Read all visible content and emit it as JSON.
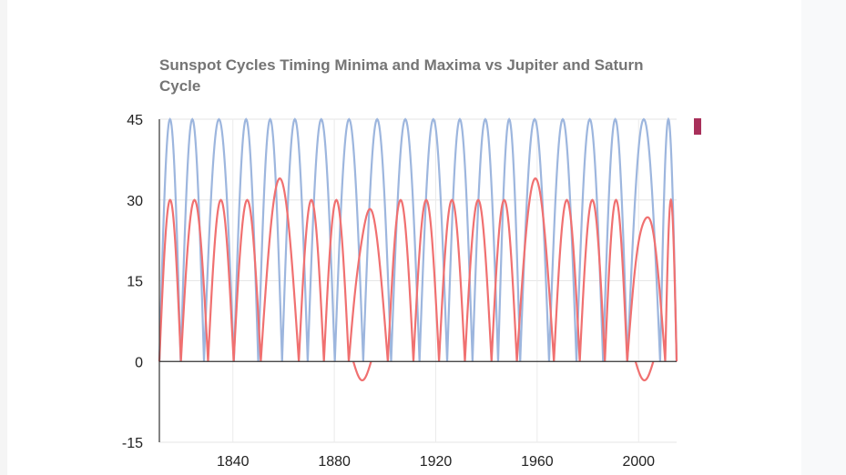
{
  "chart_data": {
    "type": "line",
    "title": "Sunspot Cycles Timing Minima and Maxima vs Jupiter and Saturn Cycle",
    "xlabel": "",
    "ylabel": "",
    "xlim": [
      1811,
      2015
    ],
    "ylim": [
      -15,
      45
    ],
    "x_ticks": [
      1840,
      1880,
      1920,
      1960,
      2000
    ],
    "y_ticks": [
      -15,
      0,
      15,
      30,
      45
    ],
    "grid": true,
    "legend": "right",
    "series": [
      {
        "color": "#9db6de",
        "style": "periodic",
        "amplitude": 45,
        "baseline": 0,
        "minima": [
          1811,
          1819.4,
          1828.6,
          1840.4,
          1850.0,
          1859.4,
          1869.5,
          1880.2,
          1891.4,
          1902.4,
          1913.6,
          1924.5,
          1934.5,
          1944.6,
          1953.3,
          1964.7,
          1975.5,
          1986.0,
          1995.6,
          2008.5,
          2015
        ]
      },
      {
        "color": "#f07070",
        "style": "periodic",
        "baseline": 0,
        "cycles": [
          {
            "start": 1811,
            "end": 1819.5,
            "amplitude": 30
          },
          {
            "start": 1819.5,
            "end": 1830.2,
            "amplitude": 30
          },
          {
            "start": 1830.2,
            "end": 1840.3,
            "amplitude": 30
          },
          {
            "start": 1840.3,
            "end": 1851.0,
            "amplitude": 30
          },
          {
            "start": 1851.0,
            "end": 1866.0,
            "amplitude": 34
          },
          {
            "start": 1866.0,
            "end": 1875.9,
            "amplitude": 30
          },
          {
            "start": 1875.9,
            "end": 1885.7,
            "amplitude": 30
          },
          {
            "start": 1885.7,
            "end": 1901.1,
            "amplitude": 30
          },
          {
            "start": 1901.1,
            "end": 1911.2,
            "amplitude": 30
          },
          {
            "start": 1911.2,
            "end": 1921.3,
            "amplitude": 30
          },
          {
            "start": 1921.3,
            "end": 1931.5,
            "amplitude": 30
          },
          {
            "start": 1931.5,
            "end": 1942.0,
            "amplitude": 30
          },
          {
            "start": 1942.0,
            "end": 1952.0,
            "amplitude": 30
          },
          {
            "start": 1952.0,
            "end": 1966.6,
            "amplitude": 34
          },
          {
            "start": 1966.6,
            "end": 1976.8,
            "amplitude": 30
          },
          {
            "start": 1976.8,
            "end": 1986.7,
            "amplitude": 30
          },
          {
            "start": 1986.7,
            "end": 1995.5,
            "amplitude": 30
          },
          {
            "start": 1995.5,
            "end": 2010.5,
            "amplitude": 30
          },
          {
            "start": 2010.5,
            "end": 2015,
            "amplitude": 30
          }
        ],
        "troughs": [
          1891.0,
          2002.3
        ],
        "trough_depth": -3.5
      }
    ],
    "legend_swatch_color": "#a8305a"
  }
}
